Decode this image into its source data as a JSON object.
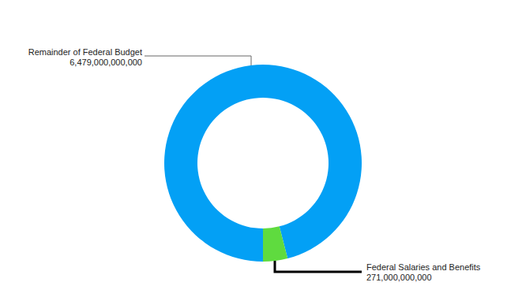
{
  "chart_data": {
    "type": "pie",
    "categories": [
      "Remainder of Federal Budget",
      "Federal Salaries and Benefits"
    ],
    "values": [
      6479000000000,
      271000000000
    ],
    "value_labels": [
      "6,479,000,000,000",
      "271,000,000,000"
    ],
    "colors": [
      "#03a0f5",
      "#5fdb3f"
    ],
    "data_labels": true
  }
}
